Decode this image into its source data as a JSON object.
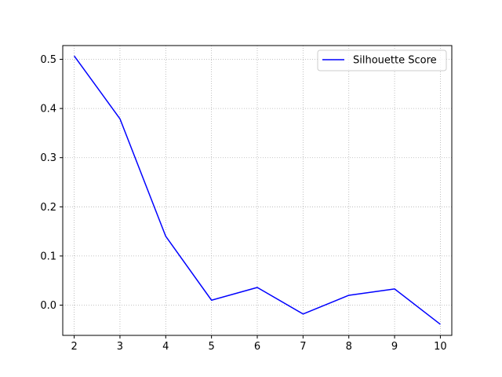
{
  "chart_data": {
    "type": "line",
    "title": "",
    "xlabel": "",
    "ylabel": "",
    "xlim": [
      1.75,
      10.25
    ],
    "ylim": [
      -0.0615,
      0.528
    ],
    "x_ticks": [
      2,
      3,
      4,
      5,
      6,
      7,
      8,
      9,
      10
    ],
    "y_ticks": [
      0.0,
      0.1,
      0.2,
      0.3,
      0.4,
      0.5
    ],
    "y_tick_labels": [
      "0.0",
      "0.1",
      "0.2",
      "0.3",
      "0.4",
      "0.5"
    ],
    "grid": true,
    "grid_style": "dotted",
    "legend_position": "top-right",
    "series": [
      {
        "name": "Silhouette Score",
        "color": "#0000ff",
        "x": [
          2,
          3,
          4,
          5,
          6,
          7,
          8,
          9,
          10
        ],
        "y": [
          0.507,
          0.379,
          0.14,
          0.01,
          0.036,
          -0.018,
          0.02,
          0.033,
          -0.039
        ]
      }
    ]
  }
}
